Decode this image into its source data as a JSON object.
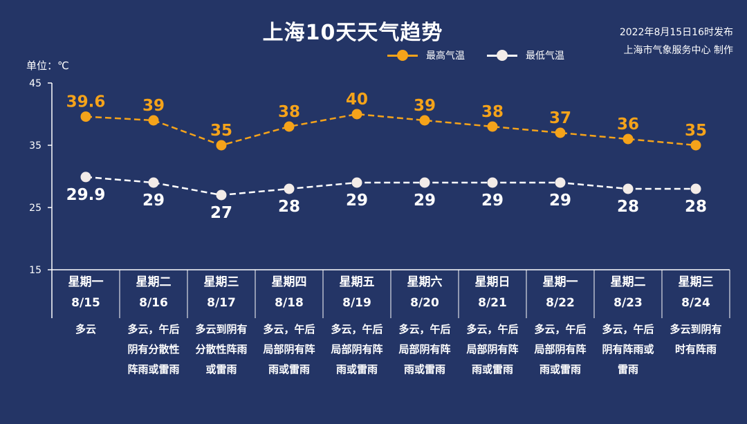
{
  "title": "上海10天天气趋势",
  "issued": {
    "line1": "2022年8月15日16时发布",
    "line2": "上海市气象服务中心 制作"
  },
  "colors": {
    "background": "#243566",
    "high": "#f5a31a",
    "low": "#ffffff",
    "axis": "#ffffff"
  },
  "chart_data": {
    "type": "line",
    "title": "上海10天天气趋势",
    "ylabel": "单位：℃",
    "ylim": [
      15,
      45
    ],
    "yticks": [
      15,
      25,
      35,
      45
    ],
    "grid": false,
    "legend_position": "top-right",
    "categories": [
      "8/15",
      "8/16",
      "8/17",
      "8/18",
      "8/19",
      "8/20",
      "8/21",
      "8/22",
      "8/23",
      "8/24"
    ],
    "weekdays": [
      "星期一",
      "星期二",
      "星期三",
      "星期四",
      "星期五",
      "星期六",
      "星期日",
      "星期一",
      "星期二",
      "星期三"
    ],
    "series": [
      {
        "name": "最高气温",
        "values": [
          39.6,
          39,
          35,
          38,
          40,
          39,
          38,
          37,
          36,
          35
        ]
      },
      {
        "name": "最低气温",
        "values": [
          29.9,
          29,
          27,
          28,
          29,
          29,
          29,
          29,
          28,
          28
        ]
      }
    ],
    "descriptions": [
      [
        "多云"
      ],
      [
        "多云，午后",
        "阴有分散性",
        "阵雨或雷雨"
      ],
      [
        "多云到阴有",
        "分散性阵雨",
        "或雷雨"
      ],
      [
        "多云，午后",
        "局部阴有阵",
        "雨或雷雨"
      ],
      [
        "多云，午后",
        "局部阴有阵",
        "雨或雷雨"
      ],
      [
        "多云，午后",
        "局部阴有阵",
        "雨或雷雨"
      ],
      [
        "多云，午后",
        "局部阴有阵",
        "雨或雷雨"
      ],
      [
        "多云，午后",
        "局部阴有阵",
        "雨或雷雨"
      ],
      [
        "多云，午后",
        "阴有阵雨或",
        "雷雨"
      ],
      [
        "多云到阴有",
        "时有阵雨"
      ]
    ]
  }
}
